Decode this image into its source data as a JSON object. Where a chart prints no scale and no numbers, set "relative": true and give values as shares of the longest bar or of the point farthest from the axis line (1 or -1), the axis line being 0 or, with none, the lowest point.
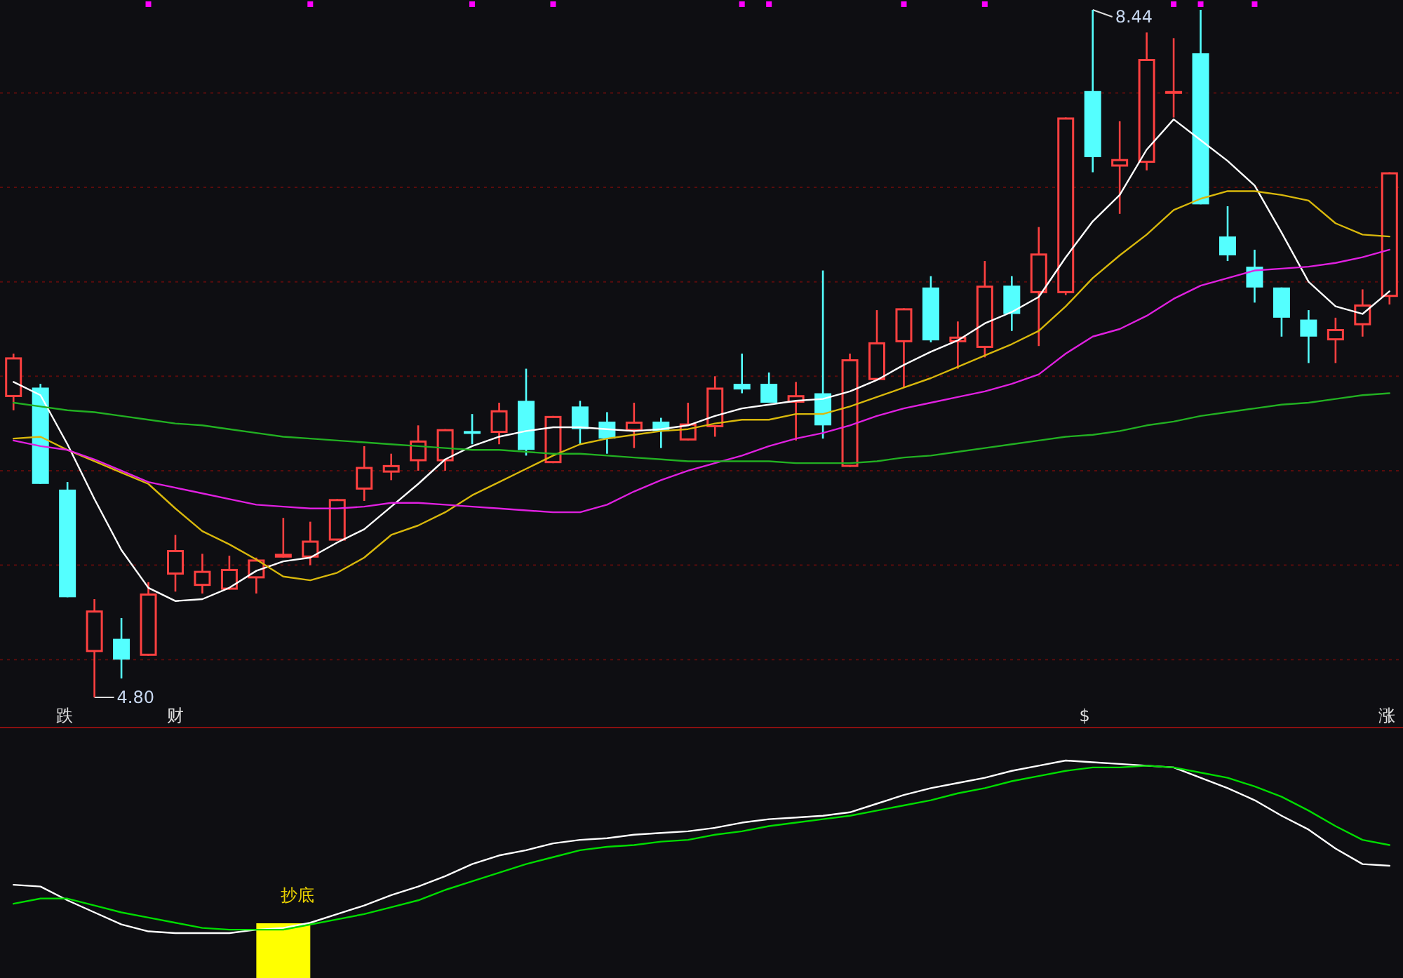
{
  "chart_data": [
    {
      "type": "candlestick",
      "categories": [
        null,
        null,
        null,
        null,
        null,
        null,
        null,
        null,
        null,
        null,
        null,
        null,
        null,
        null,
        null,
        null,
        null,
        null,
        null,
        null,
        null,
        null,
        null,
        null,
        null,
        null,
        null,
        null,
        null,
        null,
        null,
        null,
        null,
        null,
        null,
        null,
        null,
        null,
        null,
        null,
        null,
        null,
        null,
        null,
        null,
        null,
        null,
        null,
        null,
        null,
        null,
        null
      ],
      "ohlc": [
        [
          6.39,
          6.62,
          6.32,
          6.6
        ],
        [
          6.44,
          6.46,
          5.93,
          5.93
        ],
        [
          5.9,
          5.94,
          5.33,
          5.33
        ],
        [
          5.04,
          5.32,
          4.8,
          5.26
        ],
        [
          5.11,
          5.22,
          4.9,
          5.0
        ],
        [
          5.02,
          5.41,
          5.02,
          5.35
        ],
        [
          5.45,
          5.66,
          5.36,
          5.58
        ],
        [
          5.39,
          5.56,
          5.35,
          5.47
        ],
        [
          5.37,
          5.55,
          5.37,
          5.48
        ],
        [
          5.43,
          5.54,
          5.35,
          5.53
        ],
        [
          5.54,
          5.75,
          5.54,
          5.56
        ],
        [
          5.54,
          5.73,
          5.5,
          5.63
        ],
        [
          5.63,
          5.85,
          5.63,
          5.85
        ],
        [
          5.9,
          6.13,
          5.84,
          6.02
        ],
        [
          5.99,
          6.09,
          5.95,
          6.03
        ],
        [
          6.05,
          6.24,
          6.0,
          6.16
        ],
        [
          6.05,
          6.22,
          6.0,
          6.22
        ],
        [
          6.21,
          6.3,
          6.14,
          6.2
        ],
        [
          6.2,
          6.36,
          6.14,
          6.32
        ],
        [
          6.37,
          6.54,
          6.08,
          6.11
        ],
        [
          6.04,
          6.29,
          6.04,
          6.29
        ],
        [
          6.34,
          6.37,
          6.14,
          6.22
        ],
        [
          6.26,
          6.31,
          6.09,
          6.17
        ],
        [
          6.21,
          6.36,
          6.12,
          6.26
        ],
        [
          6.26,
          6.28,
          6.12,
          6.21
        ],
        [
          6.16,
          6.36,
          6.16,
          6.25
        ],
        [
          6.23,
          6.5,
          6.18,
          6.44
        ],
        [
          6.46,
          6.62,
          6.41,
          6.43
        ],
        [
          6.46,
          6.52,
          6.36,
          6.36
        ],
        [
          6.36,
          6.47,
          6.16,
          6.4
        ],
        [
          6.41,
          7.06,
          6.17,
          6.24
        ],
        [
          6.02,
          6.62,
          6.02,
          6.59
        ],
        [
          6.48,
          6.85,
          6.48,
          6.68
        ],
        [
          6.68,
          6.86,
          6.44,
          6.86
        ],
        [
          6.97,
          7.03,
          6.68,
          6.69
        ],
        [
          6.68,
          6.79,
          6.54,
          6.71
        ],
        [
          6.65,
          7.11,
          6.6,
          6.98
        ],
        [
          6.98,
          7.03,
          6.74,
          6.83
        ],
        [
          6.94,
          7.29,
          6.66,
          7.15
        ],
        [
          6.94,
          7.87,
          6.93,
          7.87
        ],
        [
          8.01,
          8.44,
          7.58,
          7.66
        ],
        [
          7.61,
          7.85,
          7.36,
          7.65
        ],
        [
          7.63,
          8.32,
          7.59,
          8.18
        ],
        [
          8.0,
          8.29,
          7.87,
          8.01
        ],
        [
          8.21,
          8.44,
          7.41,
          7.41
        ],
        [
          7.24,
          7.4,
          7.11,
          7.14
        ],
        [
          7.08,
          7.17,
          6.89,
          6.97
        ],
        [
          6.97,
          6.97,
          6.71,
          6.81
        ],
        [
          6.8,
          6.85,
          6.57,
          6.71
        ],
        [
          6.69,
          6.81,
          6.57,
          6.75
        ],
        [
          6.77,
          6.96,
          6.71,
          6.88
        ],
        [
          6.92,
          7.58,
          6.88,
          7.58
        ]
      ],
      "colors": [
        "#ff4040",
        "#54ffff",
        "#54ffff",
        "#ff4040",
        "#54ffff",
        "#ff4040",
        "#ff4040",
        "#ff4040",
        "#ff4040",
        "#ff4040",
        "#ff4040",
        "#ff4040",
        "#ff4040",
        "#ff4040",
        "#ff4040",
        "#ff4040",
        "#ff4040",
        "#54ffff",
        "#ff4040",
        "#54ffff",
        "#ff4040",
        "#54ffff",
        "#54ffff",
        "#ff4040",
        "#54ffff",
        "#ff4040",
        "#ff4040",
        "#54ffff",
        "#54ffff",
        "#ff4040",
        "#54ffff",
        "#ff4040",
        "#ff4040",
        "#ff4040",
        "#54ffff",
        "#ff4040",
        "#ff4040",
        "#54ffff",
        "#ff4040",
        "#ff4040",
        "#54ffff",
        "#ff4040",
        "#ff4040",
        "#ff4040",
        "#54ffff",
        "#54ffff",
        "#54ffff",
        "#54ffff",
        "#54ffff",
        "#ff4040",
        "#ff4040",
        "#ff4040"
      ],
      "series": [
        {
          "type": "line",
          "color": "#ffffff",
          "values": [
            6.47,
            6.4,
            6.14,
            5.85,
            5.58,
            5.38,
            5.31,
            5.32,
            5.38,
            5.47,
            5.52,
            5.54,
            5.62,
            5.69,
            5.81,
            5.93,
            6.06,
            6.13,
            6.18,
            6.21,
            6.23,
            6.23,
            6.22,
            6.21,
            6.22,
            6.24,
            6.29,
            6.33,
            6.35,
            6.37,
            6.38,
            6.42,
            6.48,
            6.56,
            6.63,
            6.69,
            6.78,
            6.84,
            6.92,
            7.13,
            7.32,
            7.46,
            7.7,
            7.86,
            7.75,
            7.64,
            7.51,
            7.26,
            7.0,
            6.87,
            6.83,
            6.95
          ]
        },
        {
          "type": "line",
          "color": "#d9b80c",
          "values": [
            6.17,
            6.18,
            6.11,
            6.05,
            5.99,
            5.93,
            5.8,
            5.68,
            5.61,
            5.53,
            5.44,
            5.42,
            5.46,
            5.54,
            5.66,
            5.71,
            5.78,
            5.87,
            5.94,
            6.01,
            6.08,
            6.14,
            6.17,
            6.19,
            6.21,
            6.22,
            6.25,
            6.27,
            6.27,
            6.3,
            6.3,
            6.34,
            6.39,
            6.44,
            6.49,
            6.55,
            6.61,
            6.67,
            6.74,
            6.87,
            7.02,
            7.14,
            7.25,
            7.38,
            7.44,
            7.48,
            7.48,
            7.46,
            7.43,
            7.31,
            7.25,
            7.24
          ]
        },
        {
          "type": "line",
          "color": "#e020e0",
          "values": [
            6.16,
            6.13,
            6.11,
            6.06,
            6.0,
            5.94,
            5.91,
            5.88,
            5.85,
            5.82,
            5.81,
            5.8,
            5.8,
            5.81,
            5.83,
            5.83,
            5.82,
            5.81,
            5.8,
            5.79,
            5.78,
            5.78,
            5.82,
            5.89,
            5.95,
            6.0,
            6.04,
            6.08,
            6.13,
            6.17,
            6.2,
            6.24,
            6.29,
            6.33,
            6.36,
            6.39,
            6.42,
            6.46,
            6.51,
            6.62,
            6.71,
            6.75,
            6.82,
            6.91,
            6.98,
            7.02,
            7.06,
            7.07,
            7.08,
            7.1,
            7.13,
            7.17
          ]
        },
        {
          "type": "line",
          "color": "#22b022",
          "values": [
            6.36,
            6.34,
            6.32,
            6.31,
            6.29,
            6.27,
            6.25,
            6.24,
            6.22,
            6.2,
            6.18,
            6.17,
            6.16,
            6.15,
            6.14,
            6.13,
            6.12,
            6.11,
            6.11,
            6.1,
            6.09,
            6.09,
            6.08,
            6.07,
            6.06,
            6.05,
            6.05,
            6.05,
            6.05,
            6.04,
            6.04,
            6.04,
            6.05,
            6.07,
            6.08,
            6.1,
            6.12,
            6.14,
            6.16,
            6.18,
            6.19,
            6.21,
            6.24,
            6.26,
            6.29,
            6.31,
            6.33,
            6.35,
            6.36,
            6.38,
            6.4,
            6.41
          ]
        },
        {
          "type": "scatter",
          "marker": "square",
          "color": "#ff00ff",
          "values": [
            null,
            null,
            null,
            null,
            null,
            8.47,
            null,
            null,
            null,
            null,
            null,
            8.47,
            null,
            null,
            null,
            null,
            null,
            8.47,
            null,
            null,
            8.47,
            null,
            null,
            null,
            null,
            null,
            null,
            8.47,
            8.47,
            null,
            null,
            null,
            null,
            8.47,
            null,
            null,
            8.47,
            null,
            null,
            null,
            null,
            null,
            null,
            8.47,
            8.47,
            null,
            8.47,
            null,
            null,
            null,
            null,
            null
          ]
        }
      ],
      "yticks": [
        {
          "value": 5.0,
          "label": null
        },
        {
          "value": 5.5,
          "label": null
        },
        {
          "value": 6.0,
          "label": null
        },
        {
          "value": 6.5,
          "label": null
        },
        {
          "value": 7.0,
          "label": null
        },
        {
          "value": 7.5,
          "label": null
        },
        {
          "value": 8.0,
          "label": null
        }
      ],
      "grid": "y",
      "annotations": [
        "8.44",
        "4.80",
        "跌",
        "财",
        "$",
        "涨"
      ]
    },
    {
      "type": "line",
      "relative": true,
      "categories": [
        null,
        null,
        null,
        null,
        null,
        null,
        null,
        null,
        null,
        null,
        null,
        null,
        null,
        null,
        null,
        null,
        null,
        null,
        null,
        null,
        null,
        null,
        null,
        null,
        null,
        null,
        null,
        null,
        null,
        null,
        null,
        null,
        null,
        null,
        null,
        null,
        null,
        null,
        null,
        null,
        null,
        null,
        null,
        null,
        null,
        null,
        null,
        null,
        null,
        null,
        null,
        null
      ],
      "series": [
        {
          "color": "#ffffff",
          "values": [
            0.28,
            0.27,
            0.19,
            0.12,
            0.05,
            0.01,
            0,
            0,
            0,
            0.02,
            0.03,
            0.06,
            0.11,
            0.16,
            0.22,
            0.27,
            0.33,
            0.4,
            0.45,
            0.48,
            0.52,
            0.54,
            0.55,
            0.57,
            0.58,
            0.59,
            0.61,
            0.64,
            0.66,
            0.67,
            0.68,
            0.7,
            0.75,
            0.8,
            0.84,
            0.87,
            0.9,
            0.94,
            0.97,
            1.0,
            0.99,
            0.98,
            0.97,
            0.96,
            0.9,
            0.84,
            0.77,
            0.68,
            0.6,
            0.49,
            0.4,
            0.39
          ]
        },
        {
          "color": "#00dd00",
          "values": [
            0.17,
            0.2,
            0.2,
            0.16,
            0.12,
            0.09,
            0.06,
            0.03,
            0.02,
            0.02,
            0.02,
            0.05,
            0.08,
            0.11,
            0.15,
            0.19,
            0.25,
            0.3,
            0.35,
            0.4,
            0.44,
            0.48,
            0.5,
            0.51,
            0.53,
            0.54,
            0.57,
            0.59,
            0.62,
            0.64,
            0.66,
            0.68,
            0.71,
            0.74,
            0.77,
            0.81,
            0.84,
            0.88,
            0.91,
            0.94,
            0.96,
            0.96,
            0.97,
            0.96,
            0.93,
            0.9,
            0.85,
            0.79,
            0.71,
            0.62,
            0.54,
            0.51
          ]
        }
      ],
      "annotations": [
        "抄底"
      ]
    }
  ]
}
